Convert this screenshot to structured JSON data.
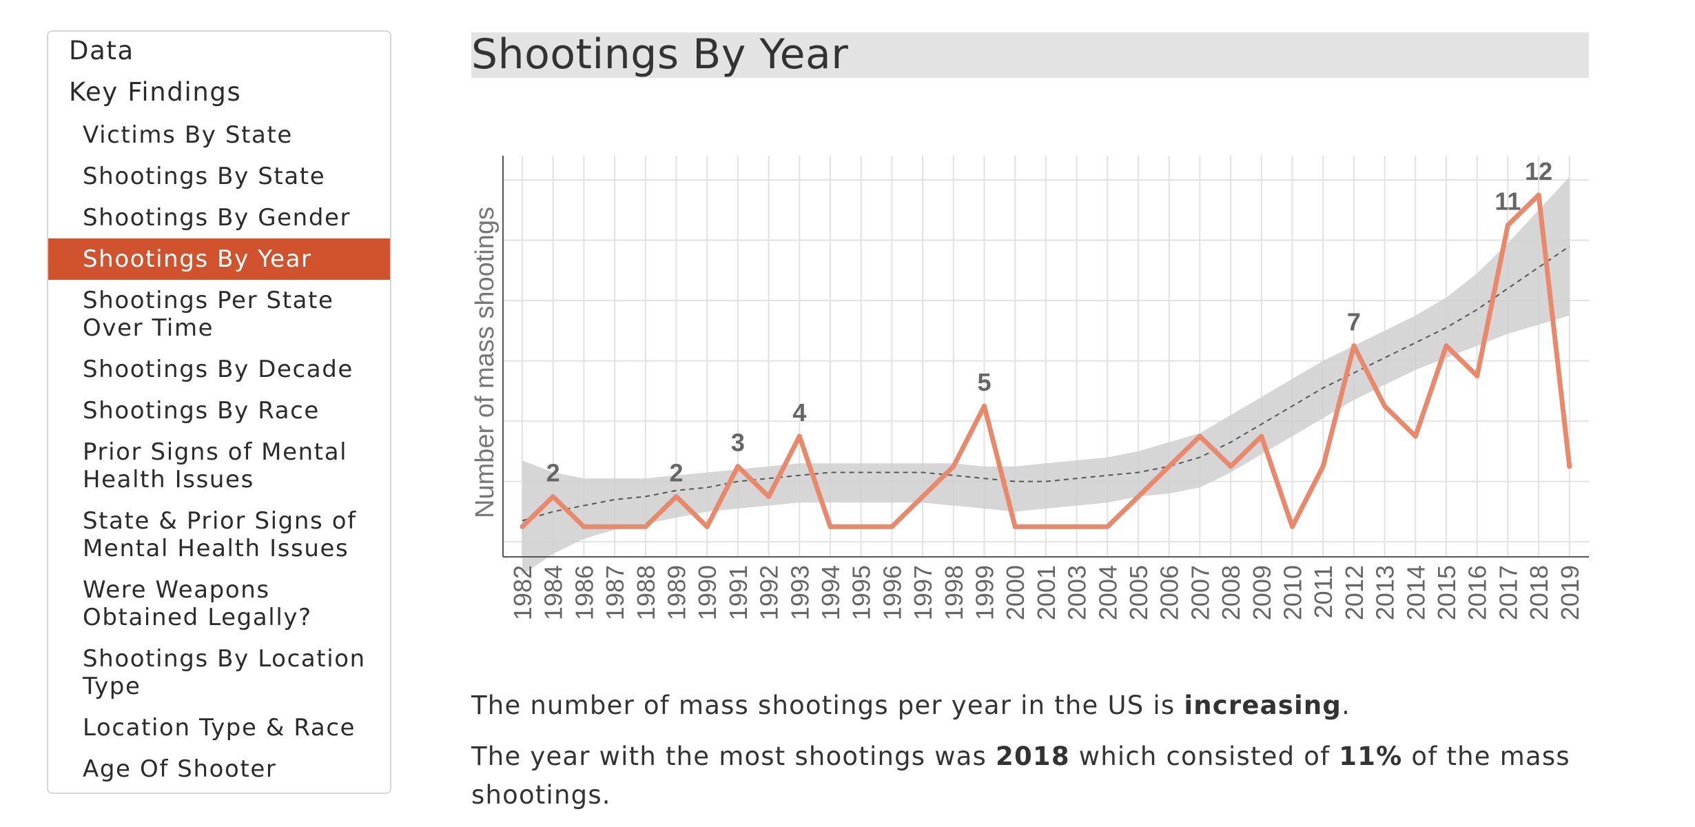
{
  "sidebar": {
    "top_items": [
      {
        "label": "Data"
      },
      {
        "label": "Key Findings"
      }
    ],
    "sub_items": [
      {
        "lines": [
          "Victims By State"
        ],
        "active": false
      },
      {
        "lines": [
          "Shootings By State"
        ],
        "active": false
      },
      {
        "lines": [
          "Shootings By Gender"
        ],
        "active": false
      },
      {
        "lines": [
          "Shootings By Year"
        ],
        "active": true
      },
      {
        "lines": [
          "Shootings Per State",
          "Over Time"
        ],
        "active": false
      },
      {
        "lines": [
          "Shootings By Decade"
        ],
        "active": false
      },
      {
        "lines": [
          "Shootings By Race"
        ],
        "active": false
      },
      {
        "lines": [
          "Prior Signs of Mental",
          "Health Issues"
        ],
        "active": false
      },
      {
        "lines": [
          "State & Prior Signs of",
          "Mental Health Issues"
        ],
        "active": false
      },
      {
        "lines": [
          "Were Weapons",
          "Obtained Legally?"
        ],
        "active": false
      },
      {
        "lines": [
          "Shootings By Location",
          "Type"
        ],
        "active": false
      },
      {
        "lines": [
          "Location Type & Race"
        ],
        "active": false
      },
      {
        "lines": [
          "Age Of Shooter"
        ],
        "active": false
      }
    ]
  },
  "main": {
    "title": "Shootings By Year",
    "summary1": {
      "pre": "The number of mass shootings per year in the US is ",
      "bold": "increasing",
      "post": "."
    },
    "summary2": {
      "pre": "The year with the most shootings was ",
      "bold1": "2018",
      "mid": " which consisted of ",
      "bold2": "11%",
      "post": " of the mass shootings."
    }
  },
  "colors": {
    "accent": "#d0532e",
    "line": "#e8896b",
    "band": "#cfcfcf",
    "trend": "#555555",
    "grid": "#e2e2e2",
    "label": "#666666"
  },
  "chart_data": {
    "type": "line",
    "ylabel": "Number of mass shootings",
    "xlabel": "",
    "categories": [
      "1982",
      "1984",
      "1986",
      "1987",
      "1988",
      "1989",
      "1990",
      "1991",
      "1992",
      "1993",
      "1994",
      "1995",
      "1996",
      "1997",
      "1998",
      "1999",
      "2000",
      "2001",
      "2003",
      "2004",
      "2005",
      "2006",
      "2007",
      "2008",
      "2009",
      "2010",
      "2011",
      "2012",
      "2013",
      "2014",
      "2015",
      "2016",
      "2017",
      "2018",
      "2019"
    ],
    "values": [
      1,
      2,
      1,
      1,
      1,
      2,
      1,
      3,
      2,
      4,
      1,
      1,
      1,
      2,
      3,
      5,
      1,
      1,
      1,
      1,
      2,
      3,
      4,
      3,
      4,
      1,
      3,
      7,
      5,
      4,
      7,
      6,
      11,
      12,
      3
    ],
    "data_labels": [
      {
        "index": 1,
        "text": "2"
      },
      {
        "index": 5,
        "text": "2"
      },
      {
        "index": 7,
        "text": "3"
      },
      {
        "index": 9,
        "text": "4"
      },
      {
        "index": 15,
        "text": "5"
      },
      {
        "index": 27,
        "text": "7"
      },
      {
        "index": 32,
        "text": "11"
      },
      {
        "index": 33,
        "text": "12"
      }
    ],
    "trend": [
      1.2,
      1.5,
      1.7,
      1.9,
      2.0,
      2.2,
      2.3,
      2.5,
      2.6,
      2.7,
      2.8,
      2.8,
      2.8,
      2.8,
      2.7,
      2.6,
      2.5,
      2.5,
      2.6,
      2.7,
      2.8,
      3.0,
      3.3,
      3.8,
      4.4,
      5.0,
      5.6,
      6.1,
      6.6,
      7.1,
      7.6,
      8.2,
      8.9,
      9.6,
      10.3
    ],
    "band_upper": [
      3.2,
      2.8,
      2.6,
      2.6,
      2.6,
      2.7,
      2.8,
      2.9,
      3.0,
      3.1,
      3.1,
      3.1,
      3.1,
      3.1,
      3.1,
      3.0,
      3.0,
      3.1,
      3.2,
      3.3,
      3.5,
      3.8,
      4.1,
      4.7,
      5.3,
      5.9,
      6.5,
      7.0,
      7.5,
      8.0,
      8.6,
      9.4,
      10.4,
      11.5,
      12.6
    ],
    "band_lower": [
      -0.6,
      0.1,
      0.6,
      0.9,
      1.1,
      1.3,
      1.5,
      1.6,
      1.7,
      1.8,
      1.8,
      1.8,
      1.8,
      1.8,
      1.7,
      1.6,
      1.5,
      1.6,
      1.7,
      1.8,
      2.0,
      2.1,
      2.3,
      2.8,
      3.4,
      4.0,
      4.6,
      5.2,
      5.7,
      6.2,
      6.6,
      7.0,
      7.4,
      7.7,
      8.0
    ],
    "ylim": [
      0,
      13.3
    ],
    "y_grid": [
      0.5,
      2.5,
      4.5,
      6.5,
      8.5,
      10.5,
      12.5
    ],
    "grid": true,
    "legend": "none"
  }
}
